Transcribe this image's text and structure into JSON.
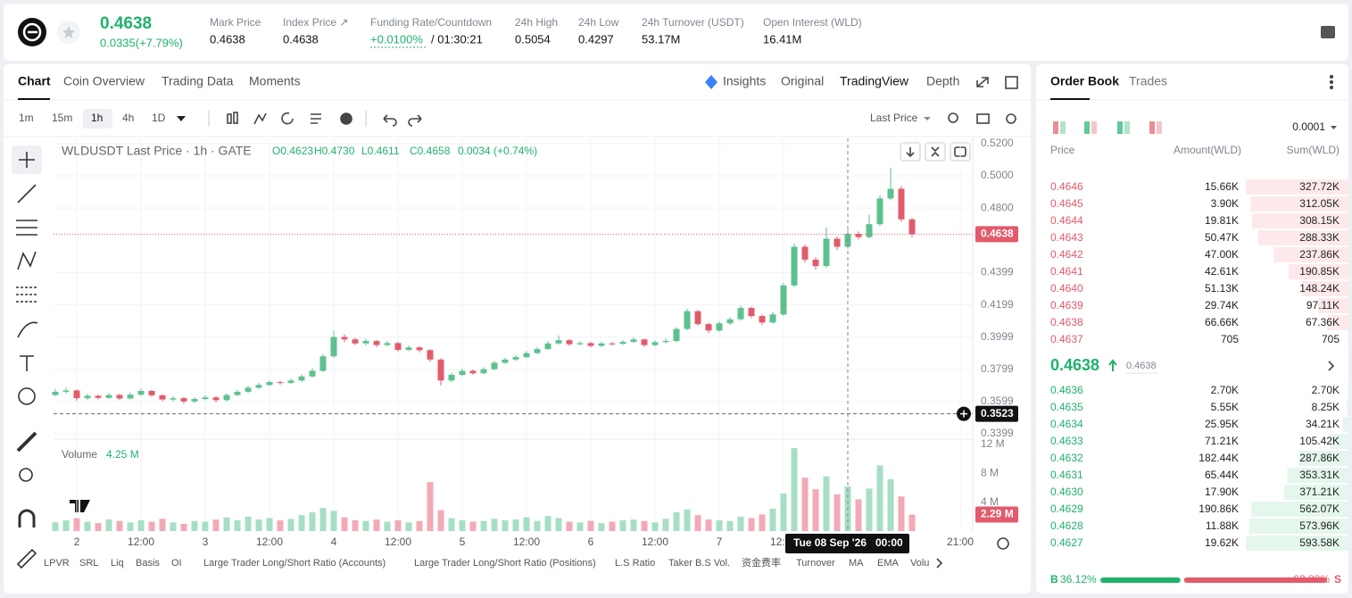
{
  "header": {
    "price": "0.4638",
    "change": "0.0335(+7.79%)",
    "stats": [
      {
        "label": "Mark Price",
        "value": "0.4638"
      },
      {
        "label": "Index Price ↗",
        "value": "0.4638"
      },
      {
        "label": "Funding Rate/Countdown",
        "value": "+0.0100%",
        "extra": "/ 01:30:21"
      },
      {
        "label": "24h High",
        "value": "0.5054"
      },
      {
        "label": "24h Low",
        "value": "0.4297"
      },
      {
        "label": "24h Turnover (USDT)",
        "value": "53.17M"
      },
      {
        "label": "Open Interest (WLD)",
        "value": "16.41M"
      }
    ]
  },
  "chart_tabs": [
    "Chart",
    "Coin Overview",
    "Trading Data",
    "Moments"
  ],
  "view_tabs": [
    "Insights",
    "Original",
    "TradingView",
    "Depth"
  ],
  "intervals": [
    "1m",
    "15m",
    "1h",
    "4h",
    "1D"
  ],
  "price_source": "Last Price",
  "chart_data": {
    "type": "candlestick",
    "title": "WLDUSDT Last Price · 1h · GATE",
    "legend_values": [
      "O0.4623",
      "H0.4730",
      "L0.4611",
      "C0.4658",
      "0.0034 (+0.74%)"
    ],
    "up_color": "#5cc18f",
    "down_color": "#e25b6b",
    "categories": [
      null,
      null,
      null,
      null,
      null,
      null,
      null,
      null,
      null,
      null,
      null,
      null,
      null,
      null,
      null,
      null,
      null,
      null,
      null,
      null,
      null,
      null,
      null,
      null,
      null,
      null,
      null,
      null,
      null,
      null,
      null,
      null,
      null,
      null,
      null,
      null,
      null,
      null,
      null,
      null,
      null,
      null,
      null,
      null,
      null,
      null,
      null,
      null,
      null,
      null,
      null,
      null,
      null,
      null,
      null,
      null,
      null,
      null,
      null,
      null,
      null,
      null,
      null,
      null,
      null,
      null,
      null,
      null,
      null,
      null,
      null,
      null,
      null,
      null,
      null,
      null,
      null,
      null,
      null,
      null,
      null
    ],
    "open": [
      0.364,
      0.366,
      0.3668,
      0.362,
      0.3635,
      0.3622,
      0.364,
      0.3618,
      0.3642,
      0.3665,
      0.3638,
      0.3612,
      0.362,
      0.36,
      0.3615,
      0.3625,
      0.3608,
      0.364,
      0.366,
      0.3685,
      0.3702,
      0.372,
      0.3715,
      0.373,
      0.3755,
      0.379,
      0.388,
      0.4,
      0.3985,
      0.396,
      0.3975,
      0.395,
      0.3962,
      0.392,
      0.3935,
      0.3918,
      0.386,
      0.373,
      0.3765,
      0.379,
      0.3775,
      0.38,
      0.384,
      0.386,
      0.3875,
      0.39,
      0.3925,
      0.396,
      0.398,
      0.3955,
      0.3962,
      0.3945,
      0.396,
      0.3958,
      0.397,
      0.3985,
      0.395,
      0.3968,
      0.3975,
      0.405,
      0.416,
      0.408,
      0.404,
      0.4085,
      0.411,
      0.418,
      0.413,
      0.409,
      0.414,
      0.432,
      0.456,
      0.448,
      0.444,
      0.461,
      0.456,
      0.464,
      0.462,
      0.47,
      0.486,
      0.492,
      0.473
    ],
    "high": [
      0.3678,
      0.3685,
      0.3675,
      0.3648,
      0.3642,
      0.3652,
      0.3648,
      0.3655,
      0.368,
      0.3672,
      0.3645,
      0.3632,
      0.3628,
      0.3625,
      0.3638,
      0.3632,
      0.365,
      0.3672,
      0.3698,
      0.3715,
      0.373,
      0.3728,
      0.3742,
      0.3768,
      0.3805,
      0.3895,
      0.404,
      0.4015,
      0.3995,
      0.399,
      0.3982,
      0.3975,
      0.397,
      0.3948,
      0.3942,
      0.3925,
      0.3868,
      0.3778,
      0.3802,
      0.3798,
      0.3812,
      0.3852,
      0.3872,
      0.3888,
      0.3912,
      0.3938,
      0.3975,
      0.401,
      0.3988,
      0.3975,
      0.397,
      0.3972,
      0.397,
      0.3982,
      0.3998,
      0.399,
      0.398,
      0.399,
      0.4062,
      0.4175,
      0.4168,
      0.4088,
      0.4098,
      0.4122,
      0.4195,
      0.4188,
      0.414,
      0.4155,
      0.4335,
      0.458,
      0.4575,
      0.4495,
      0.468,
      0.4625,
      0.4668,
      0.4655,
      0.476,
      0.488,
      0.505,
      0.4935,
      0.474
    ],
    "low": [
      0.3632,
      0.365,
      0.3605,
      0.361,
      0.3612,
      0.3615,
      0.3608,
      0.3612,
      0.3635,
      0.3628,
      0.3602,
      0.36,
      0.3585,
      0.359,
      0.3605,
      0.3595,
      0.36,
      0.3632,
      0.3652,
      0.3675,
      0.3695,
      0.3705,
      0.3708,
      0.3722,
      0.3748,
      0.3782,
      0.3872,
      0.3968,
      0.395,
      0.3948,
      0.3938,
      0.394,
      0.391,
      0.3912,
      0.3905,
      0.3845,
      0.37,
      0.372,
      0.3755,
      0.3765,
      0.3768,
      0.3792,
      0.3832,
      0.385,
      0.3868,
      0.3892,
      0.3918,
      0.3952,
      0.3945,
      0.3948,
      0.3935,
      0.3938,
      0.3948,
      0.395,
      0.3962,
      0.3938,
      0.3942,
      0.396,
      0.3968,
      0.404,
      0.407,
      0.4025,
      0.4032,
      0.4075,
      0.4102,
      0.4118,
      0.4075,
      0.4082,
      0.413,
      0.431,
      0.4462,
      0.4418,
      0.443,
      0.454,
      0.4548,
      0.4605,
      0.4612,
      0.469,
      0.485,
      0.4715,
      0.462
    ],
    "close": [
      0.366,
      0.3668,
      0.362,
      0.3635,
      0.3622,
      0.364,
      0.3618,
      0.3642,
      0.3665,
      0.3638,
      0.3612,
      0.362,
      0.36,
      0.3615,
      0.3625,
      0.3608,
      0.364,
      0.366,
      0.3685,
      0.3702,
      0.372,
      0.3715,
      0.373,
      0.3755,
      0.379,
      0.388,
      0.4,
      0.3985,
      0.396,
      0.3975,
      0.395,
      0.3962,
      0.392,
      0.3935,
      0.3918,
      0.386,
      0.373,
      0.3765,
      0.379,
      0.3775,
      0.38,
      0.384,
      0.386,
      0.3875,
      0.39,
      0.3925,
      0.396,
      0.398,
      0.3955,
      0.3962,
      0.3945,
      0.396,
      0.3958,
      0.397,
      0.3985,
      0.395,
      0.3968,
      0.3975,
      0.405,
      0.416,
      0.408,
      0.404,
      0.4085,
      0.411,
      0.418,
      0.413,
      0.409,
      0.414,
      0.432,
      0.456,
      0.448,
      0.444,
      0.461,
      0.456,
      0.464,
      0.462,
      0.47,
      0.486,
      0.492,
      0.473,
      0.4638
    ],
    "xlim": [
      -0.1667,
      85.667
    ],
    "xticks": [
      {
        "value": 2,
        "label": "2"
      },
      {
        "value": 8,
        "label": "12:00"
      },
      {
        "value": 14,
        "label": "3"
      },
      {
        "value": 20,
        "label": "12:00"
      },
      {
        "value": 26,
        "label": "4"
      },
      {
        "value": 32,
        "label": "12:00"
      },
      {
        "value": 38,
        "label": "5"
      },
      {
        "value": 44,
        "label": "12:00"
      },
      {
        "value": 50,
        "label": "6"
      },
      {
        "value": 56,
        "label": "12:00"
      },
      {
        "value": 62,
        "label": "7"
      },
      {
        "value": 68,
        "label": "12:00"
      },
      {
        "value": 84.5,
        "label": "21:00"
      }
    ],
    "ylim": [
      0.3366,
      0.5233
    ],
    "yticks": [
      {
        "value": 0.52,
        "label": "0.5200"
      },
      {
        "value": 0.5,
        "label": "0.5000"
      },
      {
        "value": 0.48,
        "label": "0.4800"
      },
      {
        "value": 0.4399,
        "label": "0.4399"
      },
      {
        "value": 0.4199,
        "label": "0.4199"
      },
      {
        "value": 0.3999,
        "label": "0.3999"
      },
      {
        "value": 0.3799,
        "label": "0.3799"
      },
      {
        "value": 0.3599,
        "label": "0.3599"
      },
      {
        "value": 0.3399,
        "label": "0.3399"
      }
    ],
    "grid": true,
    "last_price": {
      "value": 0.4638,
      "label": "0.4638"
    },
    "crosshair": {
      "time": "Tue 08 Sep '26",
      "hour": "00:00",
      "price": {
        "value": 0.3523,
        "label": "0.3523"
      }
    },
    "volume": {
      "title": "Volume",
      "current": "4.25 M",
      "up_color": "#a6dfc3",
      "down_color": "#f3aab5",
      "ylim": [
        0,
        12.75
      ],
      "yticks": [
        {
          "value": 12,
          "label": "12 M"
        },
        {
          "value": 8,
          "label": "8 M"
        },
        {
          "value": 4,
          "label": "4 M"
        }
      ],
      "values": [
        1.2,
        1.5,
        1.8,
        1.3,
        1.1,
        1.6,
        1.4,
        1.2,
        1.5,
        1.3,
        1.7,
        1.2,
        1.0,
        1.4,
        1.3,
        1.6,
        1.9,
        1.5,
        2.0,
        1.6,
        1.8,
        1.5,
        1.7,
        2.2,
        2.6,
        3.2,
        2.8,
        1.9,
        1.5,
        1.4,
        1.6,
        1.3,
        1.5,
        1.2,
        1.4,
        6.8,
        2.9,
        1.8,
        1.5,
        1.3,
        1.4,
        1.7,
        1.5,
        1.6,
        1.9,
        1.4,
        2.1,
        1.8,
        1.3,
        1.2,
        1.4,
        1.1,
        1.3,
        1.5,
        1.6,
        1.4,
        1.2,
        1.7,
        2.6,
        3.0,
        2.2,
        1.6,
        1.5,
        1.4,
        2.0,
        1.8,
        2.3,
        3.1,
        5.2,
        11.5,
        7.4,
        5.8,
        7.6,
        5.1,
        6.2,
        4.4,
        5.9,
        9.1,
        7.2,
        4.8,
        2.29
      ],
      "value_labels": [
        null,
        null,
        null,
        null,
        null,
        null,
        null,
        null,
        null,
        null,
        null,
        null,
        null,
        null,
        null,
        null,
        null,
        null,
        null,
        null,
        null,
        null,
        null,
        null,
        null,
        null,
        null,
        null,
        null,
        null,
        null,
        null,
        null,
        null,
        null,
        null,
        null,
        null,
        null,
        null,
        null,
        null,
        null,
        null,
        null,
        null,
        null,
        null,
        null,
        null,
        null,
        null,
        null,
        null,
        null,
        null,
        null,
        null,
        null,
        null,
        null,
        null,
        null,
        null,
        null,
        null,
        null,
        null,
        null,
        null,
        null,
        null,
        null,
        null,
        null,
        null,
        null,
        null,
        null,
        null,
        "2.29 M"
      ]
    }
  },
  "indicators": [
    "LPVR",
    "SRL",
    "Liq",
    "Basis",
    "OI",
    "Large Trader Long/Short Ratio (Accounts)",
    "Large Trader Long/Short Ratio (Positions)",
    "L.S Ratio",
    "Taker B.S Vol.",
    "资金费率",
    "Turnover",
    "MA",
    "EMA",
    "Volu"
  ],
  "order_book": {
    "tabs": [
      "Order Book",
      "Trades"
    ],
    "precision": "0.0001",
    "headers": [
      "Price",
      "Amount(WLD)",
      "Sum(WLD)"
    ],
    "asks": {
      "prices": [
        "0.4646",
        "0.4645",
        "0.4644",
        "0.4643",
        "0.4642",
        "0.4641",
        "0.4640",
        "0.4639",
        "0.4638",
        "0.4637"
      ],
      "amounts": [
        "15.66K",
        "3.90K",
        "19.81K",
        "50.47K",
        "47.00K",
        "42.61K",
        "51.13K",
        "29.74K",
        "66.66K",
        "705"
      ],
      "sums": [
        327720,
        312050,
        308150,
        288330,
        237860,
        190850,
        148240,
        97110,
        67360,
        705
      ],
      "sum_labels": [
        "327.72K",
        "312.05K",
        "308.15K",
        "288.33K",
        "237.86K",
        "190.85K",
        "148.24K",
        "97.11K",
        "67.36K",
        "705"
      ]
    },
    "mid": {
      "price": "0.4638",
      "mark": "0.4638"
    },
    "bids": {
      "prices": [
        "0.4636",
        "0.4635",
        "0.4634",
        "0.4633",
        "0.4632",
        "0.4631",
        "0.4630",
        "0.4629",
        "0.4628",
        "0.4627"
      ],
      "amounts": [
        "2.70K",
        "5.55K",
        "25.95K",
        "71.21K",
        "182.44K",
        "65.44K",
        "17.90K",
        "190.86K",
        "11.88K",
        "19.62K"
      ],
      "sums": [
        2700,
        8250,
        34210,
        105420,
        287860,
        353310,
        371210,
        562070,
        573960,
        593580
      ],
      "sum_labels": [
        "2.70K",
        "8.25K",
        "34.21K",
        "105.42K",
        "287.86K",
        "353.31K",
        "371.21K",
        "562.07K",
        "573.96K",
        "593.58K"
      ]
    },
    "ratio": {
      "buy_label": "B",
      "buy": 36.12,
      "buy_text": "36.12%",
      "sell": 63.88,
      "sell_text": "63.88%",
      "sell_label": "S"
    }
  }
}
